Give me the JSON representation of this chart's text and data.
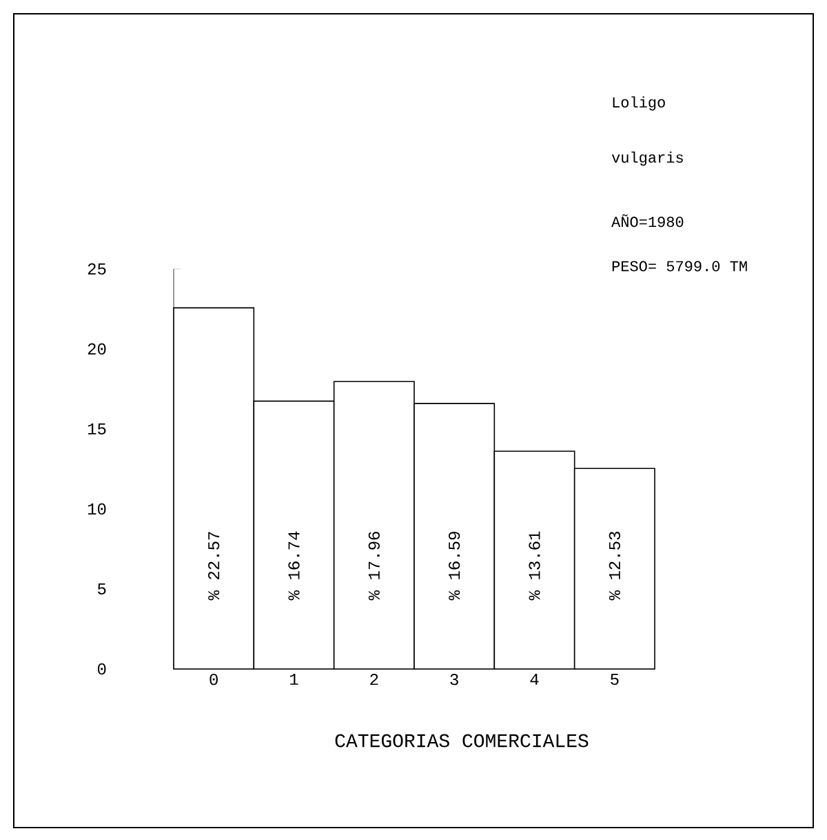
{
  "chart_data": {
    "type": "bar",
    "annotations": [
      "Loligo",
      "vulgaris",
      "AÑO=1980",
      "PESO= 5799.0 TM"
    ],
    "xlabel": "CATEGORIAS COMERCIALES",
    "categories": [
      "0",
      "1",
      "2",
      "3",
      "4",
      "5"
    ],
    "values": [
      22.57,
      16.74,
      17.96,
      16.59,
      13.61,
      12.53
    ],
    "value_labels": [
      "% 22.57",
      "% 16.74",
      "% 17.96",
      "% 16.59",
      "% 13.61",
      "% 12.53"
    ],
    "color": "#ffffff",
    "ylim": [
      0,
      25
    ],
    "yticks": [
      0,
      5,
      10,
      15,
      20,
      25
    ]
  }
}
